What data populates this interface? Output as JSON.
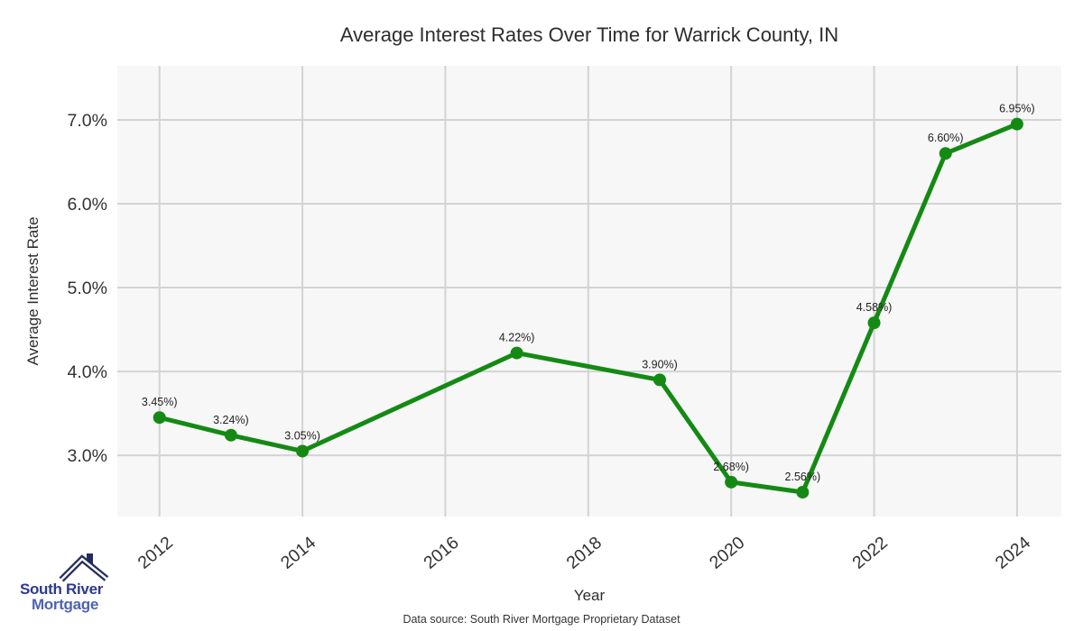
{
  "title": "Average Interest Rates Over Time for Warrick County, IN",
  "chart_data": {
    "type": "line",
    "title": "Average Interest Rates Over Time for Warrick County, IN",
    "xlabel": "Year",
    "ylabel": "Average Interest Rate",
    "x": [
      2012,
      2013,
      2014,
      2017,
      2019,
      2020,
      2021,
      2022,
      2023,
      2024
    ],
    "values": [
      3.45,
      3.24,
      3.05,
      4.22,
      3.9,
      2.68,
      2.56,
      4.58,
      6.6,
      6.95
    ],
    "point_labels": [
      "3.45%)",
      "3.24%)",
      "3.05%)",
      "4.22%)",
      "3.90%)",
      "2.68%)",
      "2.56%)",
      "4.58%)",
      "6.60%)",
      "6.95%)"
    ],
    "x_ticks": [
      {
        "value": 2012,
        "label": "2012"
      },
      {
        "value": 2014,
        "label": "2014"
      },
      {
        "value": 2016,
        "label": "2016"
      },
      {
        "value": 2018,
        "label": "2018"
      },
      {
        "value": 2020,
        "label": "2020"
      },
      {
        "value": 2022,
        "label": "2022"
      },
      {
        "value": 2024,
        "label": "2024"
      }
    ],
    "y_ticks": [
      {
        "value": 3.0,
        "label": "3.0%"
      },
      {
        "value": 4.0,
        "label": "4.0%"
      },
      {
        "value": 5.0,
        "label": "5.0%"
      },
      {
        "value": 6.0,
        "label": "6.0%"
      },
      {
        "value": 7.0,
        "label": "7.0%"
      }
    ],
    "xlim": [
      2011.41,
      2024.62
    ],
    "ylim": [
      2.27,
      7.645
    ],
    "grid": true,
    "legend_position": "none",
    "line_color": "#148a14",
    "marker_color": "#148a14",
    "panel_bg": "#f7f7f7",
    "grid_color": "#d3d3d3",
    "tick_label_color": "#333333",
    "point_label_color": "#1f1f1f"
  },
  "footer": {
    "source_note": "Data source: South River Mortgage Proprietary Dataset"
  },
  "logo": {
    "icon": "house-roof-icon",
    "name_line1": "South River",
    "name_line2": "Mortgage",
    "icon_color": "#232c5e",
    "text_color_1": "#2b3a8f",
    "text_color_2": "#4f63b5"
  }
}
